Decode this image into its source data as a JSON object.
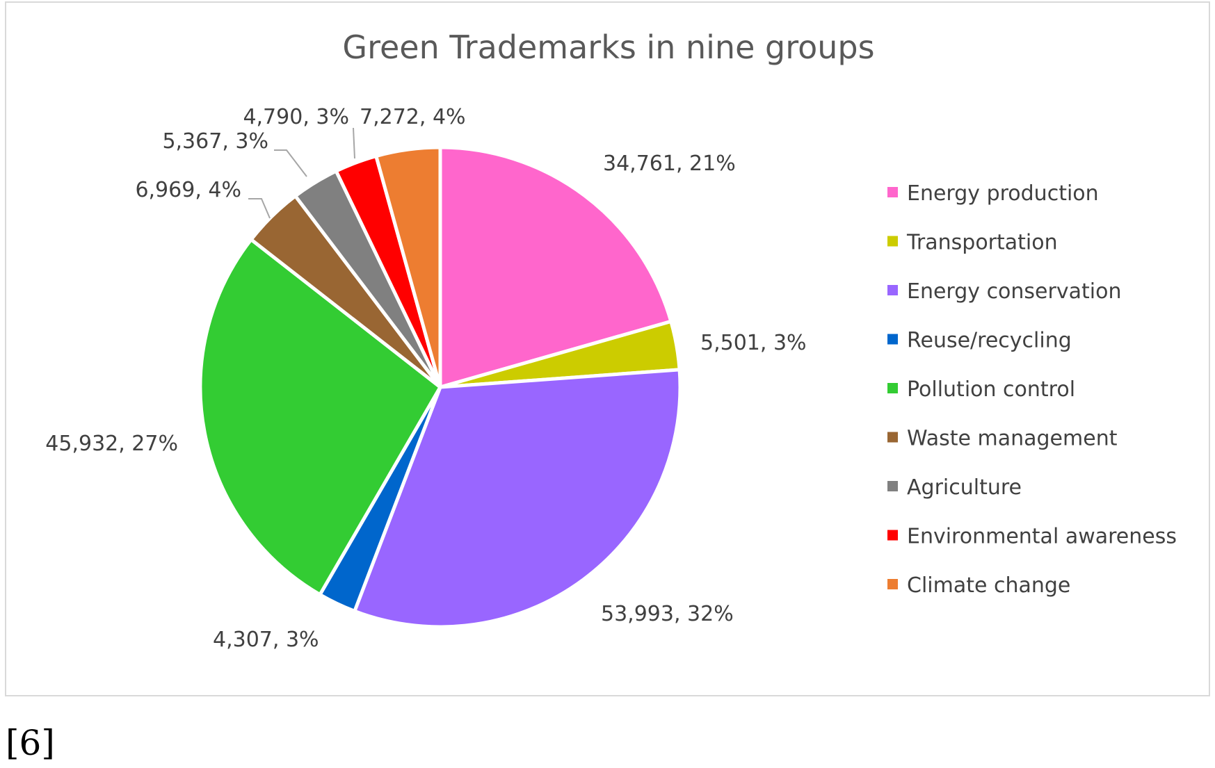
{
  "chart_data": {
    "type": "pie",
    "title": "Green Trademarks in nine groups",
    "legend_position": "right",
    "slices": [
      {
        "name": "Energy production",
        "value": 34761,
        "value_label": "34,761",
        "percent_label": "21%",
        "color": "#ff66cc"
      },
      {
        "name": "Transportation",
        "value": 5501,
        "value_label": "5,501",
        "percent_label": "3%",
        "color": "#cccc00"
      },
      {
        "name": "Energy conservation",
        "value": 53993,
        "value_label": "53,993",
        "percent_label": "32%",
        "color": "#9966ff"
      },
      {
        "name": "Reuse/recycling",
        "value": 4307,
        "value_label": "4,307",
        "percent_label": "3%",
        "color": "#0066cc"
      },
      {
        "name": "Pollution control",
        "value": 45932,
        "value_label": "45,932",
        "percent_label": "27%",
        "color": "#33cc33"
      },
      {
        "name": "Waste management",
        "value": 6969,
        "value_label": "6,969",
        "percent_label": "4%",
        "color": "#996633"
      },
      {
        "name": "Agriculture",
        "value": 5367,
        "value_label": "5,367",
        "percent_label": "3%",
        "color": "#808080"
      },
      {
        "name": "Environmental awareness",
        "value": 4790,
        "value_label": "4,790",
        "percent_label": "3%",
        "color": "#ff0000"
      },
      {
        "name": "Climate change",
        "value": 7272,
        "value_label": "7,272",
        "percent_label": "4%",
        "color": "#ed7d31"
      }
    ]
  },
  "footnote": "[6]"
}
